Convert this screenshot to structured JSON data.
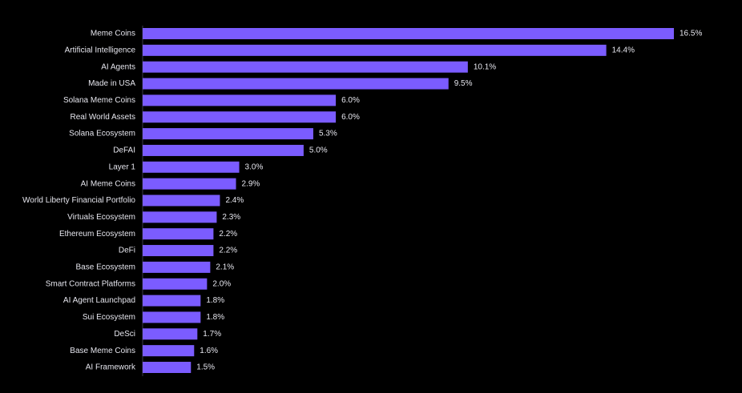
{
  "colors": {
    "background": "#000000",
    "bar": "#7b5cff",
    "axis": "#3a3a4a",
    "text": "#e6e6ee"
  },
  "chart_data": {
    "type": "bar",
    "orientation": "horizontal",
    "title": "",
    "xlabel": "",
    "ylabel": "",
    "xlim": [
      0,
      16.5
    ],
    "grid": false,
    "legend": "none",
    "value_suffix": "%",
    "categories": [
      "Meme Coins",
      "Artificial Intelligence",
      "AI Agents",
      "Made in USA",
      "Solana Meme Coins",
      "Real World Assets",
      "Solana Ecosystem",
      "DeFAI",
      "Layer 1",
      "AI Meme Coins",
      "World Liberty Financial Portfolio",
      "Virtuals Ecosystem",
      "Ethereum Ecosystem",
      "DeFi",
      "Base Ecosystem",
      "Smart Contract Platforms",
      "AI Agent Launchpad",
      "Sui Ecosystem",
      "DeSci",
      "Base Meme Coins",
      "AI Framework"
    ],
    "values": [
      16.5,
      14.4,
      10.1,
      9.5,
      6.0,
      6.0,
      5.3,
      5.0,
      3.0,
      2.9,
      2.4,
      2.3,
      2.2,
      2.2,
      2.1,
      2.0,
      1.8,
      1.8,
      1.7,
      1.6,
      1.5
    ],
    "value_labels": [
      "16.5%",
      "14.4%",
      "10.1%",
      "9.5%",
      "6.0%",
      "6.0%",
      "5.3%",
      "5.0%",
      "3.0%",
      "2.9%",
      "2.4%",
      "2.3%",
      "2.2%",
      "2.2%",
      "2.1%",
      "2.0%",
      "1.8%",
      "1.8%",
      "1.7%",
      "1.6%",
      "1.5%"
    ]
  }
}
